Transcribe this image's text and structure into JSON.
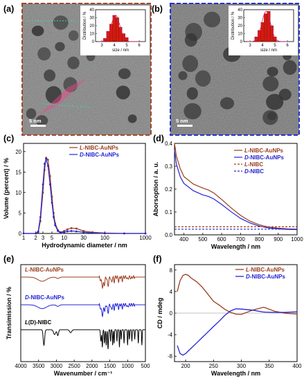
{
  "panels": {
    "a": {
      "label": "(a)",
      "scale_bar": "5 nm",
      "inset": {
        "ylabel": "Distribution / %",
        "xlabel": "size / nm",
        "yticks": [
          "0",
          "10",
          "20",
          "30",
          "40"
        ],
        "xticks": [
          "3",
          "4",
          "5",
          "6"
        ],
        "bins": [
          {
            "size": 3.25,
            "value": 4
          },
          {
            "size": 3.5,
            "value": 13
          },
          {
            "size": 3.75,
            "value": 22
          },
          {
            "size": 4.0,
            "value": 33
          },
          {
            "size": 4.25,
            "value": 30
          },
          {
            "size": 4.5,
            "value": 18
          },
          {
            "size": 4.75,
            "value": 10
          },
          {
            "size": 5.0,
            "value": 5
          }
        ]
      }
    },
    "b": {
      "label": "(b)",
      "scale_bar": "5 nm",
      "inset": {
        "ylabel": "Distribution / %",
        "xlabel": "size / nm",
        "yticks": [
          "0",
          "10",
          "20",
          "30",
          "40"
        ],
        "xticks": [
          "3",
          "4",
          "5",
          "6"
        ],
        "bins": [
          {
            "size": 3.5,
            "value": 6
          },
          {
            "size": 3.75,
            "value": 14
          },
          {
            "size": 4.0,
            "value": 24
          },
          {
            "size": 4.25,
            "value": 35
          },
          {
            "size": 4.5,
            "value": 38
          },
          {
            "size": 4.75,
            "value": 20
          },
          {
            "size": 5.0,
            "value": 6
          }
        ]
      }
    },
    "c": {
      "label": "(c)"
    },
    "d": {
      "label": "(d)"
    },
    "e": {
      "label": "(e)"
    },
    "f": {
      "label": "(f)"
    }
  },
  "colors": {
    "l": "#9b3d1f",
    "d": "#2424d6",
    "black": "#000000",
    "frame_a": "#a0452a",
    "frame_b": "#2230cc"
  },
  "chart_data": [
    {
      "panel": "c",
      "type": "line",
      "xlabel": "Hydrodynamic diameter / nm",
      "ylabel": "Volume (percent) / %",
      "xscale": "log",
      "xlim": [
        1,
        1000
      ],
      "ylim": [
        0,
        22
      ],
      "xticks": [
        "1",
        "2",
        "3",
        "5",
        "10",
        "30",
        "100",
        "1000"
      ],
      "yticks": [
        "0",
        "5",
        "10",
        "15",
        "20"
      ],
      "legend": [
        "L-NIBC-AuNPs",
        "D-NIBC-AuNPs"
      ],
      "legend_position": "top-right",
      "series": [
        {
          "name": "L-NIBC-AuNPs",
          "x": [
            1,
            2,
            2.3,
            2.6,
            3,
            3.3,
            3.6,
            4,
            4.5,
            5,
            5.5,
            6,
            7,
            8,
            10,
            12,
            15,
            20,
            30,
            50,
            100,
            300,
            1000
          ],
          "y": [
            0,
            0,
            0.3,
            3,
            10,
            15.5,
            18.5,
            18,
            14,
            9,
            5,
            2.5,
            0.8,
            0.3,
            0.6,
            1,
            1.3,
            1.2,
            0.6,
            0.3,
            0.1,
            0,
            0
          ]
        },
        {
          "name": "D-NIBC-AuNPs",
          "x": [
            1,
            2,
            2.3,
            2.6,
            3,
            3.3,
            3.6,
            4,
            4.5,
            5,
            5.5,
            6,
            7,
            8,
            10,
            12,
            15,
            20,
            30,
            50,
            100,
            300,
            1000
          ],
          "y": [
            0,
            0,
            0.5,
            4,
            12,
            17,
            18.2,
            16.5,
            12,
            7.5,
            4,
            2,
            0.6,
            0.2,
            0.3,
            0.5,
            0.6,
            0.5,
            0.3,
            0.1,
            0,
            0,
            0
          ]
        }
      ]
    },
    {
      "panel": "d",
      "type": "line",
      "xlabel": "Wavelength / nm",
      "ylabel": "Aborsoption / a. u.",
      "xlim": [
        350,
        1000
      ],
      "ylim": [
        0,
        0.4
      ],
      "xticks": [
        "400",
        "500",
        "600",
        "700",
        "800",
        "900",
        "1000"
      ],
      "yticks": [
        "0.0",
        "0.1",
        "0.2",
        "0.3",
        "0.4"
      ],
      "legend": [
        "L-NIBC-AuNPs",
        "D-NIBC-AuNPs",
        "L-NIBC",
        "D-NIBC"
      ],
      "legend_position": "top-right",
      "series": [
        {
          "name": "L-NIBC-AuNPs",
          "x": [
            350,
            360,
            380,
            400,
            450,
            500,
            530,
            560,
            600,
            650,
            700,
            750,
            800,
            850,
            900,
            950,
            1000
          ],
          "y": [
            0.4,
            0.345,
            0.29,
            0.255,
            0.222,
            0.205,
            0.196,
            0.182,
            0.155,
            0.118,
            0.085,
            0.06,
            0.044,
            0.034,
            0.029,
            0.026,
            0.025
          ]
        },
        {
          "name": "D-NIBC-AuNPs",
          "x": [
            350,
            360,
            380,
            400,
            450,
            500,
            530,
            560,
            600,
            650,
            700,
            750,
            800,
            850,
            900,
            950,
            1000
          ],
          "y": [
            0.37,
            0.31,
            0.255,
            0.225,
            0.193,
            0.175,
            0.168,
            0.156,
            0.133,
            0.101,
            0.072,
            0.052,
            0.038,
            0.03,
            0.026,
            0.024,
            0.023
          ]
        },
        {
          "name": "L-NIBC",
          "x": [
            350,
            1000
          ],
          "y": [
            0.035,
            0.035
          ]
        },
        {
          "name": "D-NIBC",
          "x": [
            350,
            1000
          ],
          "y": [
            0.025,
            0.025
          ]
        }
      ]
    },
    {
      "panel": "e",
      "type": "line",
      "xlabel": "Wavenumber / cm⁻¹",
      "ylabel": "Transimission / %",
      "xlim": [
        4000,
        500
      ],
      "xticks": [
        "4000",
        "3500",
        "3000",
        "2500",
        "2000",
        "1500",
        "1000",
        "500"
      ],
      "legend": [
        "L-NIBC-AuNPs",
        "D-NIBC-AuNPs",
        "L(D)-NIBC"
      ],
      "series": [
        {
          "name": "L-NIBC-AuNPs",
          "offset": 0
        },
        {
          "name": "D-NIBC-AuNPs",
          "offset": 1
        },
        {
          "name": "L(D)-NIBC",
          "offset": 2
        }
      ]
    },
    {
      "panel": "f",
      "type": "line",
      "xlabel": "Wavelength / nm",
      "ylabel": "CD / mdeg",
      "xlim": [
        180,
        400
      ],
      "ylim": [
        -9,
        9
      ],
      "xticks": [
        "200",
        "250",
        "300",
        "350",
        "400"
      ],
      "yticks": [
        "-8",
        "-4",
        "0",
        "4",
        "8"
      ],
      "legend": [
        "L-NIBC-AuNPs",
        "D-NIBC-AuNPs"
      ],
      "legend_position": "top-right",
      "series": [
        {
          "name": "L-NIBC-AuNPs",
          "x": [
            185,
            190,
            195,
            200,
            205,
            210,
            220,
            230,
            240,
            250,
            260,
            270,
            280,
            290,
            300,
            320,
            340,
            360,
            380,
            400
          ],
          "y": [
            4,
            6,
            7,
            7.2,
            7,
            6.5,
            5.8,
            4.8,
            3.5,
            2.2,
            1.5,
            1,
            0.3,
            -0.2,
            -0.4,
            0.2,
            0.8,
            0.3,
            0.2,
            0.2
          ]
        },
        {
          "name": "D-NIBC-AuNPs",
          "x": [
            185,
            190,
            195,
            200,
            205,
            210,
            220,
            230,
            240,
            250,
            260,
            270,
            280,
            290,
            300,
            320,
            340,
            360,
            380,
            400
          ],
          "y": [
            -6,
            -7.5,
            -7.8,
            -7.5,
            -7,
            -6.5,
            -5.5,
            -4.5,
            -3.5,
            -2.5,
            -1.5,
            -0.5,
            0.2,
            0.5,
            0.4,
            0.3,
            0.2,
            0.4,
            0.5,
            0.4
          ]
        }
      ]
    }
  ]
}
